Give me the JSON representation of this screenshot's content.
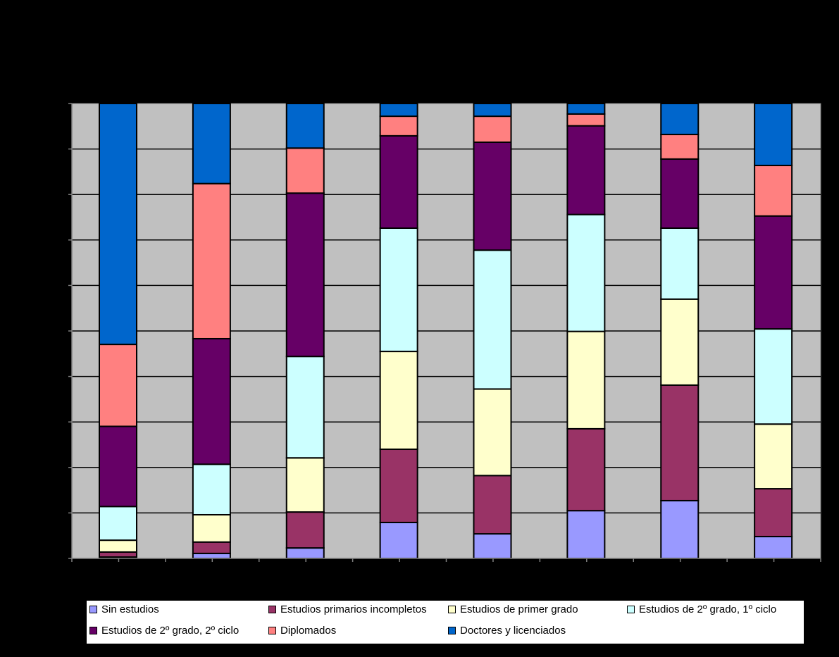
{
  "chart_data": {
    "type": "bar",
    "stacked": true,
    "percent_stacked": true,
    "title": "",
    "xlabel": "",
    "ylabel": "",
    "ylim": [
      0,
      100
    ],
    "grid": true,
    "legend_position": "bottom",
    "categories": [
      "",
      "",
      "",
      "",
      "",
      "",
      "",
      ""
    ],
    "series": [
      {
        "name": "Sin estudios",
        "color": "#9999FF",
        "values": [
          0.3,
          1.1,
          2.3,
          7.9,
          5.4,
          10.5,
          12.7,
          4.8
        ]
      },
      {
        "name": "Estudios primarios incompletos",
        "color": "#993366",
        "values": [
          1.1,
          2.5,
          7.9,
          16.1,
          12.8,
          18.0,
          25.4,
          10.5
        ]
      },
      {
        "name": "Estudios de primer grado",
        "color": "#FFFFCC",
        "values": [
          2.6,
          6.0,
          11.9,
          21.5,
          19.0,
          21.4,
          18.9,
          14.2
        ]
      },
      {
        "name": "Estudios de 2º grado, 1º ciclo",
        "color": "#CCFFFF",
        "values": [
          7.4,
          11.1,
          22.3,
          27.1,
          30.5,
          25.7,
          15.6,
          20.9
        ]
      },
      {
        "name": "Estudios de 2º grado, 2º ciclo",
        "color": "#660066",
        "values": [
          17.6,
          27.6,
          35.9,
          20.3,
          23.7,
          19.5,
          15.2,
          24.8
        ]
      },
      {
        "name": "Diplomados",
        "color": "#FF8080",
        "values": [
          18.0,
          34.1,
          9.9,
          4.3,
          5.7,
          2.6,
          5.4,
          11.1
        ]
      },
      {
        "name": "Doctores y licenciados",
        "color": "#0066CC",
        "values": [
          52.9,
          17.6,
          9.8,
          2.8,
          2.8,
          2.3,
          6.8,
          13.6
        ]
      }
    ],
    "plot_background": "#C0C0C0",
    "page_background": "#000000"
  }
}
